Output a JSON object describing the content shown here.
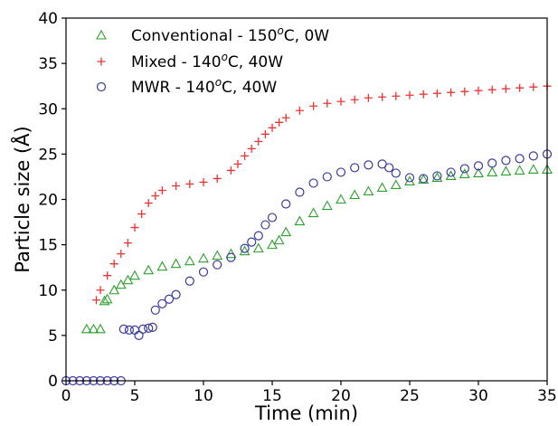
{
  "chart_data": {
    "type": "scatter",
    "xlabel": "Time (min)",
    "ylabel": "Particle size (Å)",
    "xlim": [
      0,
      35
    ],
    "ylim": [
      0,
      40
    ],
    "xticks": [
      0,
      5,
      10,
      15,
      20,
      25,
      30,
      35
    ],
    "yticks": [
      0,
      5,
      10,
      15,
      20,
      25,
      30,
      35,
      40
    ],
    "grid": false,
    "legend_position": "top-left",
    "series": [
      {
        "name": "Conventional - 150°C, 0W",
        "legend": {
          "prefix": "Conventional - 150",
          "sup": "o",
          "suffix": "C, 0W"
        },
        "marker": "triangle",
        "color": "#2ca02c",
        "x": [
          1.5,
          2.0,
          2.5,
          2.8,
          3.0,
          3.5,
          4.0,
          4.5,
          5.0,
          6.0,
          7.0,
          8.0,
          9.0,
          10.0,
          11.0,
          12.0,
          13.0,
          14.0,
          15.0,
          15.5,
          16.0,
          17.0,
          18.0,
          19.0,
          20.0,
          21.0,
          22.0,
          23.0,
          24.0,
          25.0,
          26.0,
          27.0,
          28.0,
          29.0,
          30.0,
          31.0,
          32.0,
          33.0,
          34.0,
          35.0
        ],
        "y": [
          5.7,
          5.7,
          5.7,
          8.8,
          9.0,
          10.0,
          10.6,
          11.1,
          11.6,
          12.2,
          12.6,
          12.9,
          13.2,
          13.5,
          13.8,
          14.0,
          14.3,
          14.6,
          15.0,
          15.5,
          16.4,
          17.6,
          18.5,
          19.3,
          20.0,
          20.5,
          20.9,
          21.3,
          21.6,
          22.0,
          22.2,
          22.4,
          22.6,
          22.8,
          22.9,
          23.0,
          23.1,
          23.2,
          23.3,
          23.3
        ]
      },
      {
        "name": "Mixed - 140°C, 40W",
        "legend": {
          "prefix": "Mixed - 140",
          "sup": "o",
          "suffix": "C, 40W"
        },
        "marker": "plus",
        "color": "#ee3333",
        "x": [
          2.2,
          2.5,
          3.0,
          3.5,
          4.0,
          4.5,
          5.0,
          5.5,
          6.0,
          6.5,
          7.0,
          8.0,
          9.0,
          10.0,
          11.0,
          12.0,
          12.5,
          13.0,
          13.5,
          14.0,
          14.5,
          15.0,
          15.5,
          16.0,
          17.0,
          18.0,
          19.0,
          20.0,
          21.0,
          22.0,
          23.0,
          24.0,
          25.0,
          26.0,
          27.0,
          28.0,
          29.0,
          30.0,
          31.0,
          32.0,
          33.0,
          34.0,
          35.0
        ],
        "y": [
          8.9,
          10.0,
          11.6,
          12.9,
          14.0,
          15.2,
          16.9,
          18.4,
          19.6,
          20.4,
          21.0,
          21.5,
          21.7,
          21.9,
          22.3,
          23.2,
          23.9,
          24.8,
          25.6,
          26.4,
          27.2,
          27.9,
          28.5,
          29.0,
          29.8,
          30.3,
          30.6,
          30.8,
          31.0,
          31.2,
          31.3,
          31.4,
          31.5,
          31.6,
          31.7,
          31.8,
          31.9,
          32.0,
          32.1,
          32.2,
          32.3,
          32.4,
          32.5
        ]
      },
      {
        "name": "MWR - 140°C, 40W",
        "legend": {
          "prefix": "MWR - 140",
          "sup": "o",
          "suffix": "C, 40W"
        },
        "marker": "circle",
        "color": "#3a3aa0",
        "x": [
          0.0,
          0.5,
          1.0,
          1.5,
          2.0,
          2.5,
          3.0,
          3.5,
          4.0,
          4.2,
          4.6,
          5.0,
          5.3,
          5.6,
          6.0,
          6.3,
          6.5,
          7.0,
          7.5,
          8.0,
          9.0,
          10.0,
          11.0,
          12.0,
          13.0,
          13.5,
          14.0,
          14.5,
          15.0,
          16.0,
          17.0,
          18.0,
          19.0,
          20.0,
          21.0,
          22.0,
          23.0,
          23.5,
          24.0,
          25.0,
          26.0,
          27.0,
          28.0,
          29.0,
          30.0,
          31.0,
          32.0,
          33.0,
          34.0,
          35.0
        ],
        "y": [
          0.0,
          0.0,
          0.0,
          0.0,
          0.0,
          0.0,
          0.0,
          0.0,
          0.0,
          5.7,
          5.6,
          5.6,
          5.0,
          5.7,
          5.8,
          5.9,
          7.8,
          8.5,
          9.0,
          9.5,
          11.0,
          12.0,
          12.8,
          13.6,
          14.6,
          15.3,
          16.0,
          17.2,
          18.0,
          19.5,
          20.8,
          21.8,
          22.5,
          23.0,
          23.5,
          23.8,
          23.9,
          23.5,
          22.9,
          22.4,
          22.3,
          22.6,
          23.0,
          23.4,
          23.7,
          24.0,
          24.3,
          24.5,
          24.8,
          25.0
        ]
      }
    ]
  }
}
